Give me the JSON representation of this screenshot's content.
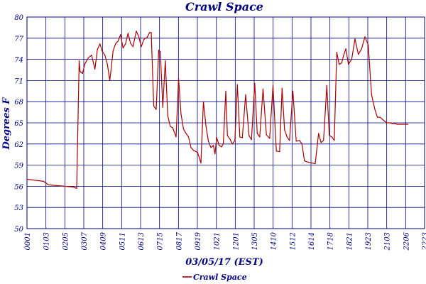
{
  "chart_data": {
    "type": "line",
    "title": "Crawl Space",
    "xlabel": "03/05/17 (EST)",
    "ylabel": "Degrees F",
    "ylim": [
      50,
      80
    ],
    "yticks": [
      50,
      53,
      56,
      59,
      62,
      65,
      68,
      71,
      74,
      77,
      80
    ],
    "xlim": [
      0,
      24
    ],
    "xticks": [
      "0001",
      "0103",
      "0205",
      "0307",
      "0409",
      "0511",
      "0613",
      "0715",
      "0817",
      "0919",
      "1021",
      "1201",
      "1305",
      "1410",
      "1512",
      "1614",
      "1718",
      "1821",
      "1923",
      "2103",
      "2206",
      "2223"
    ],
    "grid": true,
    "legend_position": "bottom-left",
    "series": [
      {
        "name": "Crawl Space",
        "color": "#aa0000",
        "x": [
          0.0,
          0.7,
          1.0,
          1.3,
          2.8,
          3.0,
          3.15,
          3.2,
          3.35,
          3.5,
          3.7,
          3.9,
          4.1,
          4.25,
          4.4,
          4.55,
          4.7,
          4.85,
          5.0,
          5.2,
          5.35,
          5.5,
          5.65,
          5.8,
          5.95,
          6.1,
          6.25,
          6.4,
          6.6,
          6.75,
          6.9,
          7.05,
          7.15,
          7.25,
          7.4,
          7.5,
          7.65,
          7.8,
          7.95,
          8.05,
          8.2,
          8.35,
          8.5,
          8.65,
          8.8,
          9.0,
          9.15,
          9.3,
          9.45,
          9.6,
          9.75,
          9.9,
          10.05,
          10.3,
          10.5,
          10.65,
          10.8,
          10.95,
          11.1,
          11.25,
          11.35,
          11.45,
          11.6,
          11.75,
          11.85,
          12.0,
          12.1,
          12.25,
          12.4,
          12.55,
          12.7,
          12.85,
          13.0,
          13.2,
          13.4,
          13.55,
          13.75,
          13.9,
          14.05,
          14.25,
          14.45,
          14.65,
          14.85,
          15.05,
          15.25,
          15.4,
          15.55,
          15.7,
          15.85,
          16.05,
          16.25,
          16.45,
          16.6,
          16.75,
          16.85,
          17.0,
          17.2,
          17.4,
          17.6,
          17.75,
          17.9,
          18.1,
          18.25,
          18.4,
          18.55,
          18.7,
          18.85,
          19.0,
          19.1,
          19.25,
          19.4,
          19.6,
          19.8,
          20.0,
          20.2,
          20.4,
          20.6,
          20.8,
          21.0,
          21.15,
          21.3,
          21.45,
          21.6,
          21.75,
          21.9,
          22.05,
          22.2,
          22.35,
          22.5,
          22.7,
          23.0
        ],
        "values": [
          57.0,
          56.8,
          56.7,
          56.2,
          55.9,
          55.7,
          73.8,
          72.3,
          72.0,
          73.4,
          74.2,
          74.6,
          72.6,
          75.4,
          76.2,
          75.1,
          74.6,
          73.3,
          71.0,
          75.2,
          76.2,
          76.6,
          77.5,
          75.6,
          76.2,
          77.7,
          76.3,
          75.8,
          78.0,
          77.2,
          75.8,
          76.8,
          77.0,
          77.1,
          77.8,
          77.8,
          67.4,
          66.9,
          75.3,
          75.1,
          67.2,
          73.8,
          66.0,
          64.5,
          64.3,
          63.0,
          71.3,
          66.2,
          64.1,
          63.5,
          63.0,
          61.5,
          61.1,
          60.8,
          59.3,
          68.0,
          64.6,
          62.4,
          61.5,
          61.8,
          60.6,
          62.9,
          61.8,
          61.6,
          62.0,
          69.5,
          63.2,
          62.7,
          62.0,
          62.5,
          70.4,
          63.0,
          62.9,
          69.0,
          63.2,
          62.6,
          70.6,
          63.5,
          63.0,
          69.8,
          63.3,
          62.8,
          70.3,
          61.0,
          60.9,
          69.9,
          64.0,
          63.0,
          62.5,
          69.5,
          62.4,
          62.5,
          62.0,
          59.6,
          59.5,
          59.4,
          59.3,
          59.2,
          63.5,
          62.2,
          62.5,
          70.3,
          63.2,
          63.0,
          62.5,
          75.0,
          73.3,
          73.5,
          74.5,
          75.5,
          73.3,
          74.0,
          76.9,
          74.7,
          75.5,
          77.2,
          76.0,
          69.0,
          66.9,
          65.8,
          65.8,
          65.5,
          65.2,
          65.0,
          65.0,
          64.9,
          64.9,
          64.8,
          64.8,
          64.8,
          64.8
        ]
      }
    ]
  }
}
